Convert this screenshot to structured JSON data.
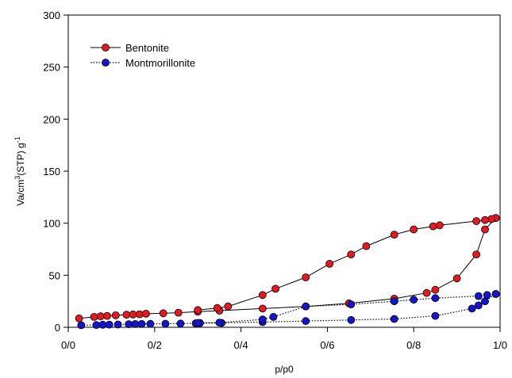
{
  "chart_data": {
    "type": "scatter",
    "xlabel": "p/p0",
    "ylabel": "Va/cm3(STP) g-1",
    "ylabel_parts": {
      "pre": "Va/cm",
      "sup1": "3",
      "mid": "(STP) g",
      "sup2": "-1"
    },
    "xlim": [
      0.0,
      1.0
    ],
    "ylim": [
      0,
      300
    ],
    "x_ticks": [
      0.0,
      0.2,
      0.4,
      0.6,
      0.8,
      1.0
    ],
    "x_tick_labels": [
      "0/0",
      "0/2",
      "0/4",
      "0/6",
      "0/8",
      "1/0"
    ],
    "y_ticks": [
      0,
      50,
      100,
      150,
      200,
      250,
      300
    ],
    "y_tick_labels": [
      "0",
      "50",
      "100",
      "150",
      "200",
      "250",
      "300"
    ],
    "grid": false,
    "legend_position": "top-left",
    "series": [
      {
        "name": "Bentonite",
        "color": "#e8191e",
        "line_style": "solid",
        "marker": "circle",
        "adsorption": [
          [
            0.025,
            8.5
          ],
          [
            0.06,
            10
          ],
          [
            0.075,
            10.5
          ],
          [
            0.09,
            11
          ],
          [
            0.11,
            11.5
          ],
          [
            0.135,
            12
          ],
          [
            0.15,
            12.3
          ],
          [
            0.165,
            12.5
          ],
          [
            0.18,
            13
          ],
          [
            0.22,
            13.5
          ],
          [
            0.255,
            14
          ],
          [
            0.3,
            15
          ],
          [
            0.35,
            16
          ],
          [
            0.45,
            18
          ],
          [
            0.55,
            20
          ],
          [
            0.65,
            23
          ],
          [
            0.755,
            27.5
          ],
          [
            0.83,
            33
          ],
          [
            0.85,
            36
          ],
          [
            0.9,
            47
          ],
          [
            0.945,
            70
          ],
          [
            0.965,
            94
          ],
          [
            0.99,
            105
          ]
        ],
        "desorption": [
          [
            0.99,
            105
          ],
          [
            0.98,
            104
          ],
          [
            0.965,
            103
          ],
          [
            0.945,
            102
          ],
          [
            0.86,
            98
          ],
          [
            0.845,
            97
          ],
          [
            0.8,
            94
          ],
          [
            0.755,
            89
          ],
          [
            0.69,
            78
          ],
          [
            0.655,
            70
          ],
          [
            0.605,
            61
          ],
          [
            0.55,
            48
          ],
          [
            0.48,
            37
          ],
          [
            0.45,
            31
          ],
          [
            0.37,
            20
          ],
          [
            0.345,
            18.5
          ],
          [
            0.3,
            16.5
          ]
        ]
      },
      {
        "name": "Montmorillonite",
        "color": "#1414d2",
        "line_style": "dotted",
        "marker": "circle",
        "adsorption": [
          [
            0.03,
            2
          ],
          [
            0.065,
            2.2
          ],
          [
            0.08,
            2.4
          ],
          [
            0.095,
            2.5
          ],
          [
            0.115,
            2.7
          ],
          [
            0.14,
            3
          ],
          [
            0.155,
            3.1
          ],
          [
            0.17,
            3.2
          ],
          [
            0.19,
            3.3
          ],
          [
            0.225,
            3.4
          ],
          [
            0.26,
            3.6
          ],
          [
            0.295,
            3.8
          ],
          [
            0.305,
            4
          ],
          [
            0.355,
            4.2
          ],
          [
            0.45,
            5
          ],
          [
            0.55,
            6
          ],
          [
            0.655,
            7
          ],
          [
            0.755,
            8
          ],
          [
            0.85,
            11
          ],
          [
            0.935,
            18
          ],
          [
            0.95,
            21
          ],
          [
            0.965,
            25
          ],
          [
            0.99,
            32
          ]
        ],
        "desorption": [
          [
            0.99,
            32
          ],
          [
            0.97,
            31
          ],
          [
            0.95,
            30
          ],
          [
            0.85,
            28
          ],
          [
            0.8,
            26.5
          ],
          [
            0.755,
            25
          ],
          [
            0.655,
            22
          ],
          [
            0.55,
            20
          ],
          [
            0.475,
            10
          ],
          [
            0.45,
            7.5
          ],
          [
            0.35,
            4.5
          ],
          [
            0.3,
            4.2
          ]
        ]
      }
    ]
  }
}
